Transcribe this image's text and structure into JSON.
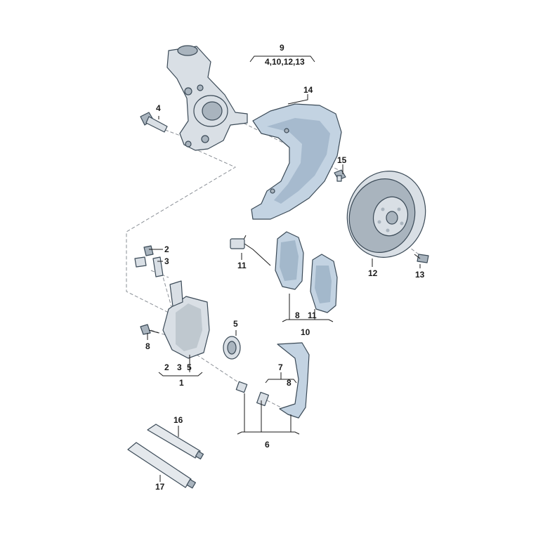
{
  "callouts": {
    "c9": "9",
    "c9_sub": "4,10,12,13",
    "c14": "14",
    "c4": "4",
    "c15": "15",
    "c2": "2",
    "c3": "3",
    "c11a": "11",
    "c12": "12",
    "c13": "13",
    "c5": "5",
    "c8a": "8",
    "c8b": "8",
    "c11b": "11",
    "c10": "10",
    "c1_2": "2",
    "c1_3": "3",
    "c1_5": "5",
    "c1": "1",
    "c7": "7",
    "c8c": "8",
    "c6": "6",
    "c16": "16",
    "c17": "17"
  }
}
